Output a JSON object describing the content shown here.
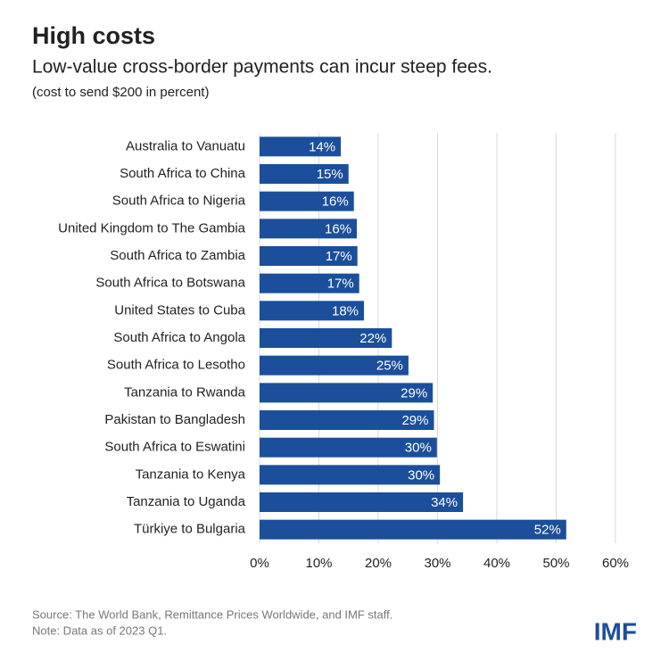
{
  "chart_data": {
    "type": "hbar",
    "title": "High costs",
    "subtitle": "Low-value cross-border payments can incur steep fees.",
    "axis_label": "(cost to send $200 in percent)",
    "categories": [
      "Australia to Vanuatu",
      "South Africa to China",
      "South Africa to Nigeria",
      "United Kingdom to The Gambia",
      "South Africa to Zambia",
      "South Africa to Botswana",
      "United States to Cuba",
      "South Africa to Angola",
      "South Africa to Lesotho",
      "Tanzania to Rwanda",
      "Pakistan to Bangladesh",
      "South Africa to Eswatini",
      "Tanzania to Kenya",
      "Tanzania to Uganda",
      "Türkiye to Bulgaria"
    ],
    "values": [
      13.7,
      15.0,
      15.9,
      16.4,
      16.5,
      16.8,
      17.6,
      22.3,
      25.1,
      29.2,
      29.4,
      29.9,
      30.4,
      34.3,
      51.7
    ],
    "value_labels": [
      "14%",
      "15%",
      "16%",
      "16%",
      "17%",
      "17%",
      "18%",
      "22%",
      "25%",
      "29%",
      "29%",
      "30%",
      "30%",
      "34%",
      "52%"
    ],
    "color": "#1b4f9b",
    "xlim": [
      0,
      60
    ],
    "xticks": [
      {
        "value": 0,
        "label": "0%"
      },
      {
        "value": 10,
        "label": "10%"
      },
      {
        "value": 20,
        "label": "20%"
      },
      {
        "value": 30,
        "label": "30%"
      },
      {
        "value": 40,
        "label": "40%"
      },
      {
        "value": 50,
        "label": "50%"
      },
      {
        "value": 60,
        "label": "60%"
      }
    ],
    "grid": true,
    "source": "Source: The World Bank, Remittance Prices Worldwide, and IMF staff.",
    "note": "Note: Data as of 2023 Q1.",
    "logo": "IMF"
  }
}
